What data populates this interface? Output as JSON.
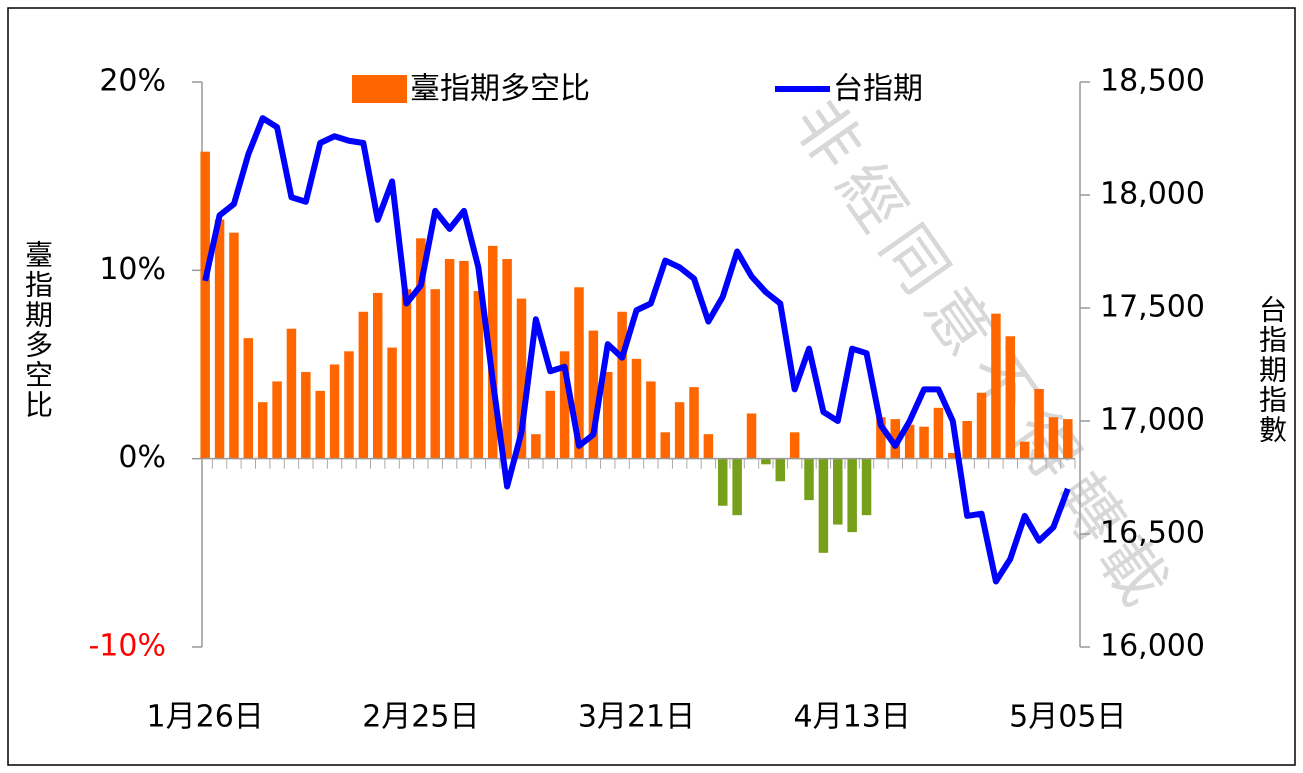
{
  "chart_data": {
    "type": "bar_line",
    "watermark": "非經同意不得轉載",
    "y_label": "臺指期多空比",
    "y2_label": "台指期指數",
    "categories": [
      "1月26日",
      null,
      null,
      null,
      null,
      null,
      null,
      null,
      null,
      null,
      null,
      null,
      null,
      null,
      null,
      "2月25日",
      null,
      null,
      null,
      null,
      null,
      null,
      null,
      null,
      null,
      null,
      null,
      null,
      null,
      null,
      "3月21日",
      null,
      null,
      null,
      null,
      null,
      null,
      null,
      null,
      null,
      null,
      null,
      null,
      null,
      null,
      "4月13日",
      null,
      null,
      null,
      null,
      null,
      null,
      null,
      null,
      null,
      null,
      null,
      null,
      null,
      null,
      "5月05日"
    ],
    "series": [
      {
        "name": "臺指期多空比",
        "type": "bar",
        "color": "#ff6600",
        "negative_color": "#77a01a",
        "values": [
          16.3,
          12.7,
          12.0,
          6.4,
          3.0,
          4.1,
          6.9,
          4.6,
          3.6,
          5.0,
          5.7,
          7.8,
          8.8,
          5.9,
          9.0,
          11.7,
          9.0,
          10.6,
          10.5,
          8.9,
          11.3,
          10.6,
          8.5,
          1.3,
          3.6,
          5.7,
          9.1,
          6.8,
          4.6,
          7.8,
          5.3,
          4.1,
          1.4,
          3.0,
          3.8,
          1.3,
          -2.5,
          -3.0,
          2.4,
          -0.3,
          -1.2,
          1.4,
          -2.2,
          -5.0,
          -3.5,
          -3.9,
          -3.0,
          2.2,
          2.1,
          1.8,
          1.7,
          2.7,
          0.3,
          2.0,
          3.5,
          7.7,
          6.5,
          0.9,
          3.7,
          2.2,
          2.1
        ]
      },
      {
        "name": "台指期",
        "type": "line",
        "axis": "y2",
        "color": "#0000ff",
        "values": [
          17620,
          17910,
          17960,
          18180,
          18340,
          18300,
          17990,
          17970,
          18230,
          18260,
          18240,
          18230,
          17890,
          18060,
          17520,
          17600,
          17930,
          17850,
          17930,
          17680,
          17180,
          16710,
          16950,
          17450,
          17220,
          17240,
          16890,
          16940,
          17340,
          17280,
          17490,
          17520,
          17710,
          17680,
          17630,
          17440,
          17550,
          17750,
          17640,
          17570,
          17520,
          17140,
          17320,
          17040,
          17000,
          17320,
          17300,
          16980,
          16890,
          17000,
          17140,
          17140,
          17000,
          16580,
          16590,
          16290,
          16390,
          16580,
          16470,
          16530,
          16700
        ]
      }
    ],
    "ylim": [
      -10,
      20
    ],
    "yticks": [
      {
        "value": -10,
        "label": "-10%",
        "color": "#ff0000"
      },
      {
        "value": 0,
        "label": "0%"
      },
      {
        "value": 10,
        "label": "10%"
      },
      {
        "value": 20,
        "label": "20%"
      }
    ],
    "y2lim": [
      16000,
      18500
    ],
    "y2ticks": [
      {
        "value": 16000,
        "label": "16,000"
      },
      {
        "value": 16500,
        "label": "16,500"
      },
      {
        "value": 17000,
        "label": "17,000"
      },
      {
        "value": 17500,
        "label": "17,500"
      },
      {
        "value": 18000,
        "label": "18,000"
      },
      {
        "value": 18500,
        "label": "18,500"
      }
    ],
    "legend": "top"
  }
}
